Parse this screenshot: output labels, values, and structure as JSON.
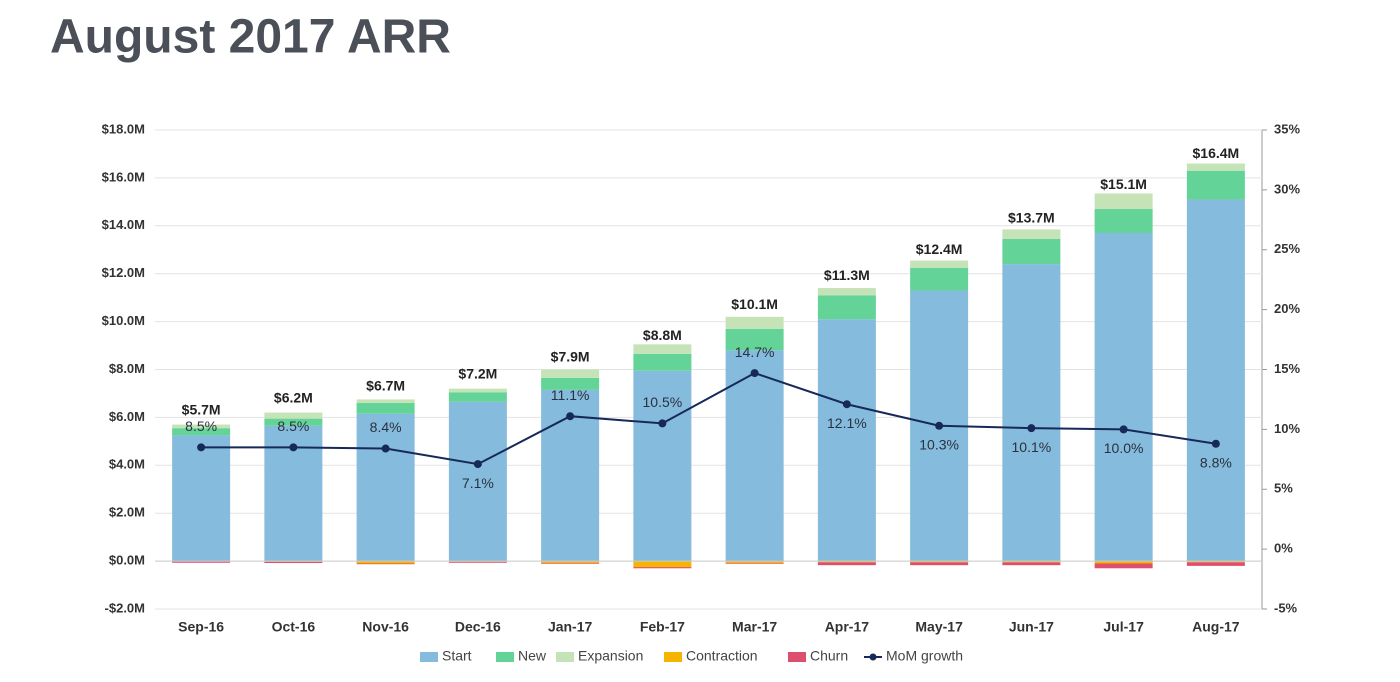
{
  "chart_data": {
    "type": "bar",
    "title": "August 2017 ARR",
    "categories": [
      "Sep-16",
      "Oct-16",
      "Nov-16",
      "Dec-16",
      "Jan-17",
      "Feb-17",
      "Mar-17",
      "Apr-17",
      "May-17",
      "Jun-17",
      "Jul-17",
      "Aug-17"
    ],
    "series": [
      {
        "name": "Start",
        "color": "#85bbdc",
        "values": [
          5.25,
          5.65,
          6.15,
          6.65,
          7.15,
          7.95,
          8.8,
          10.1,
          11.3,
          12.4,
          13.7,
          15.1
        ]
      },
      {
        "name": "New",
        "color": "#63d398",
        "values": [
          0.3,
          0.3,
          0.45,
          0.4,
          0.5,
          0.7,
          0.9,
          1.0,
          0.95,
          1.05,
          1.0,
          1.2
        ]
      },
      {
        "name": "Expansion",
        "color": "#c5e3b7",
        "values": [
          0.15,
          0.25,
          0.15,
          0.15,
          0.35,
          0.4,
          0.5,
          0.3,
          0.3,
          0.4,
          0.65,
          0.3
        ]
      },
      {
        "name": "Contraction",
        "color": "#f4b400",
        "values": [
          -0.02,
          -0.03,
          -0.1,
          -0.03,
          -0.08,
          -0.25,
          -0.08,
          -0.05,
          -0.05,
          -0.05,
          -0.1,
          -0.05
        ]
      },
      {
        "name": "Churn",
        "color": "#de4f6d",
        "values": [
          -0.05,
          -0.05,
          -0.03,
          -0.04,
          -0.03,
          -0.05,
          -0.03,
          -0.12,
          -0.12,
          -0.12,
          -0.2,
          -0.15
        ]
      },
      {
        "name": "MoM growth",
        "color": "#17295a",
        "type": "line",
        "axis": "y2",
        "values": [
          8.5,
          8.5,
          8.4,
          7.1,
          11.1,
          10.5,
          14.7,
          12.1,
          10.3,
          10.1,
          10.0,
          8.8
        ],
        "value_labels": [
          "8.5%",
          "8.5%",
          "8.4%",
          "7.1%",
          "11.1%",
          "10.5%",
          "14.7%",
          "12.1%",
          "10.3%",
          "10.1%",
          "10.0%",
          "8.8%"
        ]
      }
    ],
    "totals": [
      5.7,
      6.2,
      6.7,
      7.2,
      7.9,
      8.8,
      10.1,
      11.3,
      12.4,
      13.7,
      15.1,
      16.4
    ],
    "total_labels": [
      "$5.7M",
      "$6.2M",
      "$6.7M",
      "$7.2M",
      "$7.9M",
      "$8.8M",
      "$10.1M",
      "$11.3M",
      "$12.4M",
      "$13.7M",
      "$15.1M",
      "$16.4M"
    ],
    "ylim": [
      -2,
      18
    ],
    "yticks": [
      {
        "value": -2,
        "label": "-$2.0M"
      },
      {
        "value": 0,
        "label": "$0.0M"
      },
      {
        "value": 2,
        "label": "$2.0M"
      },
      {
        "value": 4,
        "label": "$4.0M"
      },
      {
        "value": 6,
        "label": "$6.0M"
      },
      {
        "value": 8,
        "label": "$8.0M"
      },
      {
        "value": 10,
        "label": "$10.0M"
      },
      {
        "value": 12,
        "label": "$12.0M"
      },
      {
        "value": 14,
        "label": "$14.0M"
      },
      {
        "value": 16,
        "label": "$16.0M"
      },
      {
        "value": 18,
        "label": "$18.0M"
      }
    ],
    "y2lim": [
      -5,
      35
    ],
    "y2ticks": [
      {
        "value": -5,
        "label": "-5%"
      },
      {
        "value": 0,
        "label": "0%"
      },
      {
        "value": 5,
        "label": "5%"
      },
      {
        "value": 10,
        "label": "10%"
      },
      {
        "value": 15,
        "label": "15%"
      },
      {
        "value": 20,
        "label": "20%"
      },
      {
        "value": 25,
        "label": "25%"
      },
      {
        "value": 30,
        "label": "30%"
      },
      {
        "value": 35,
        "label": "35%"
      }
    ],
    "grid": true
  }
}
